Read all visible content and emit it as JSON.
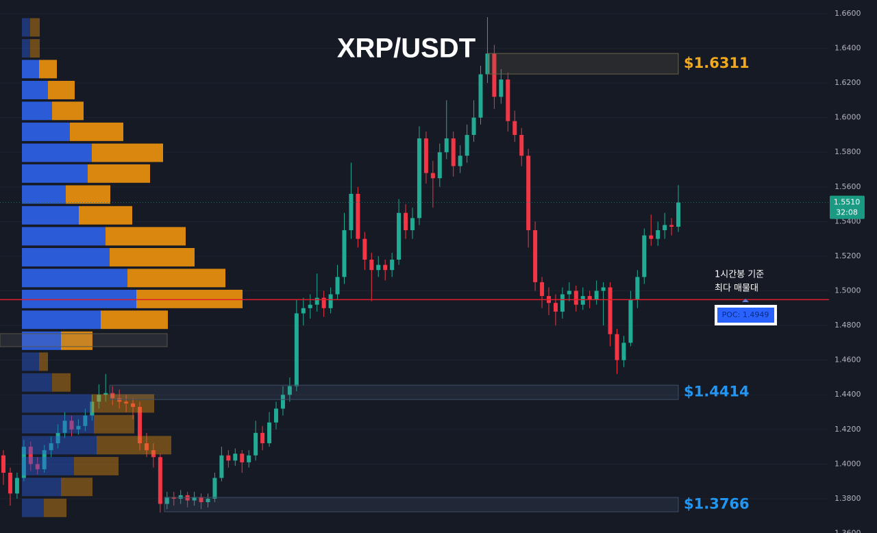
{
  "chart_data": {
    "type": "candlestick",
    "title": "XRP/USDT",
    "ylim": [
      1.3602,
      1.6679
    ],
    "yticks": [
      {
        "value": 1.36,
        "label": "1.3600"
      },
      {
        "value": 1.38,
        "label": "1.3800"
      },
      {
        "value": 1.4,
        "label": "1.4000"
      },
      {
        "value": 1.42,
        "label": "1.4200"
      },
      {
        "value": 1.44,
        "label": "1.4400"
      },
      {
        "value": 1.46,
        "label": "1.4600"
      },
      {
        "value": 1.48,
        "label": "1.4800"
      },
      {
        "value": 1.5,
        "label": "1.5000"
      },
      {
        "value": 1.52,
        "label": "1.5200"
      },
      {
        "value": 1.54,
        "label": "1.5400"
      },
      {
        "value": 1.56,
        "label": "1.5600"
      },
      {
        "value": 1.58,
        "label": "1.5800"
      },
      {
        "value": 1.6,
        "label": "1.6000"
      },
      {
        "value": 1.62,
        "label": "1.6200"
      },
      {
        "value": 1.64,
        "label": "1.6400"
      },
      {
        "value": 1.66,
        "label": "1.6600"
      }
    ],
    "grid": true,
    "up_color": "#22ab94",
    "down_color": "#f23645",
    "ohlc": [
      [
        1.405,
        1.408,
        1.388,
        1.395
      ],
      [
        1.395,
        1.398,
        1.376,
        1.383
      ],
      [
        1.383,
        1.395,
        1.38,
        1.392
      ],
      [
        1.392,
        1.414,
        1.39,
        1.41
      ],
      [
        1.41,
        1.413,
        1.396,
        1.4
      ],
      [
        1.4,
        1.404,
        1.394,
        1.397
      ],
      [
        1.397,
        1.411,
        1.395,
        1.408
      ],
      [
        1.408,
        1.416,
        1.404,
        1.412
      ],
      [
        1.412,
        1.423,
        1.409,
        1.418
      ],
      [
        1.418,
        1.43,
        1.415,
        1.425
      ],
      [
        1.425,
        1.428,
        1.416,
        1.42
      ],
      [
        1.42,
        1.426,
        1.417,
        1.422
      ],
      [
        1.422,
        1.432,
        1.419,
        1.428
      ],
      [
        1.428,
        1.44,
        1.425,
        1.436
      ],
      [
        1.436,
        1.446,
        1.432,
        1.44
      ],
      [
        1.44,
        1.452,
        1.436,
        1.441
      ],
      [
        1.441,
        1.445,
        1.434,
        1.438
      ],
      [
        1.438,
        1.443,
        1.432,
        1.436
      ],
      [
        1.436,
        1.44,
        1.43,
        1.435
      ],
      [
        1.435,
        1.438,
        1.426,
        1.433
      ],
      [
        1.433,
        1.436,
        1.408,
        1.412
      ],
      [
        1.412,
        1.418,
        1.404,
        1.408
      ],
      [
        1.408,
        1.412,
        1.398,
        1.404
      ],
      [
        1.404,
        1.406,
        1.372,
        1.377
      ],
      [
        1.377,
        1.384,
        1.374,
        1.381
      ],
      [
        1.381,
        1.384,
        1.376,
        1.38
      ],
      [
        1.38,
        1.385,
        1.377,
        1.382
      ],
      [
        1.382,
        1.384,
        1.375,
        1.379
      ],
      [
        1.379,
        1.384,
        1.376,
        1.381
      ],
      [
        1.381,
        1.383,
        1.374,
        1.378
      ],
      [
        1.378,
        1.383,
        1.375,
        1.38
      ],
      [
        1.38,
        1.395,
        1.378,
        1.392
      ],
      [
        1.392,
        1.41,
        1.39,
        1.405
      ],
      [
        1.405,
        1.408,
        1.398,
        1.402
      ],
      [
        1.402,
        1.409,
        1.399,
        1.406
      ],
      [
        1.406,
        1.408,
        1.395,
        1.401
      ],
      [
        1.401,
        1.408,
        1.398,
        1.405
      ],
      [
        1.405,
        1.425,
        1.402,
        1.418
      ],
      [
        1.418,
        1.422,
        1.408,
        1.412
      ],
      [
        1.412,
        1.43,
        1.41,
        1.424
      ],
      [
        1.424,
        1.436,
        1.42,
        1.432
      ],
      [
        1.432,
        1.445,
        1.428,
        1.44
      ],
      [
        1.44,
        1.45,
        1.436,
        1.445
      ],
      [
        1.445,
        1.495,
        1.442,
        1.487
      ],
      [
        1.487,
        1.496,
        1.48,
        1.49
      ],
      [
        1.49,
        1.498,
        1.484,
        1.492
      ],
      [
        1.492,
        1.51,
        1.488,
        1.496
      ],
      [
        1.496,
        1.5,
        1.485,
        1.49
      ],
      [
        1.49,
        1.502,
        1.487,
        1.498
      ],
      [
        1.498,
        1.515,
        1.495,
        1.508
      ],
      [
        1.508,
        1.545,
        1.504,
        1.535
      ],
      [
        1.535,
        1.574,
        1.53,
        1.556
      ],
      [
        1.556,
        1.56,
        1.525,
        1.53
      ],
      [
        1.53,
        1.534,
        1.512,
        1.518
      ],
      [
        1.518,
        1.522,
        1.494,
        1.512
      ],
      [
        1.512,
        1.52,
        1.508,
        1.515
      ],
      [
        1.515,
        1.518,
        1.506,
        1.512
      ],
      [
        1.512,
        1.522,
        1.508,
        1.518
      ],
      [
        1.518,
        1.553,
        1.515,
        1.545
      ],
      [
        1.545,
        1.55,
        1.53,
        1.535
      ],
      [
        1.535,
        1.548,
        1.53,
        1.542
      ],
      [
        1.542,
        1.595,
        1.538,
        1.588
      ],
      [
        1.588,
        1.592,
        1.562,
        1.568
      ],
      [
        1.568,
        1.575,
        1.548,
        1.565
      ],
      [
        1.565,
        1.585,
        1.56,
        1.58
      ],
      [
        1.58,
        1.61,
        1.576,
        1.588
      ],
      [
        1.588,
        1.592,
        1.566,
        1.572
      ],
      [
        1.572,
        1.584,
        1.568,
        1.578
      ],
      [
        1.578,
        1.596,
        1.574,
        1.59
      ],
      [
        1.59,
        1.61,
        1.586,
        1.6
      ],
      [
        1.6,
        1.63,
        1.596,
        1.625
      ],
      [
        1.625,
        1.658,
        1.62,
        1.637
      ],
      [
        1.637,
        1.642,
        1.605,
        1.612
      ],
      [
        1.612,
        1.628,
        1.608,
        1.622
      ],
      [
        1.622,
        1.626,
        1.592,
        1.598
      ],
      [
        1.598,
        1.604,
        1.586,
        1.59
      ],
      [
        1.59,
        1.594,
        1.572,
        1.578
      ],
      [
        1.578,
        1.582,
        1.525,
        1.535
      ],
      [
        1.535,
        1.54,
        1.5,
        1.505
      ],
      [
        1.505,
        1.508,
        1.49,
        1.497
      ],
      [
        1.497,
        1.502,
        1.486,
        1.493
      ],
      [
        1.493,
        1.498,
        1.48,
        1.488
      ],
      [
        1.488,
        1.502,
        1.484,
        1.498
      ],
      [
        1.498,
        1.505,
        1.494,
        1.5
      ],
      [
        1.5,
        1.503,
        1.488,
        1.492
      ],
      [
        1.492,
        1.502,
        1.489,
        1.497
      ],
      [
        1.497,
        1.5,
        1.49,
        1.495
      ],
      [
        1.495,
        1.506,
        1.492,
        1.5
      ],
      [
        1.5,
        1.505,
        1.48,
        1.502
      ],
      [
        1.502,
        1.505,
        1.468,
        1.475
      ],
      [
        1.475,
        1.478,
        1.452,
        1.46
      ],
      [
        1.46,
        1.474,
        1.456,
        1.47
      ],
      [
        1.47,
        1.5,
        1.468,
        1.495
      ],
      [
        1.495,
        1.512,
        1.49,
        1.508
      ],
      [
        1.508,
        1.536,
        1.504,
        1.532
      ],
      [
        1.532,
        1.544,
        1.526,
        1.53
      ],
      [
        1.53,
        1.54,
        1.526,
        1.535
      ],
      [
        1.535,
        1.545,
        1.53,
        1.538
      ],
      [
        1.538,
        1.542,
        1.532,
        1.537
      ],
      [
        1.537,
        1.561,
        1.534,
        1.551
      ]
    ],
    "profile": {
      "levels": [
        1.6521,
        1.64,
        1.628,
        1.6159,
        1.6039,
        1.5918,
        1.5797,
        1.5677,
        1.5556,
        1.5436,
        1.5315,
        1.5194,
        1.5074,
        1.4953,
        1.4833,
        1.4712,
        1.4591,
        1.4471,
        1.435,
        1.423,
        1.4109,
        1.3988,
        1.3868,
        1.3747
      ],
      "buy": [
        12,
        12,
        25,
        38,
        44,
        70,
        102,
        96,
        64,
        83,
        122,
        128,
        154,
        167,
        115,
        57,
        25,
        44,
        102,
        105,
        109,
        76,
        57,
        32
      ],
      "sell": [
        14,
        14,
        26,
        39,
        46,
        78,
        104,
        91,
        65,
        78,
        117,
        124,
        143,
        155,
        98,
        46,
        13,
        27,
        91,
        59,
        109,
        65,
        46,
        33
      ],
      "buy_color": "#2b5bd7",
      "sell_color": "#d9870f",
      "value_area": [
        1.465,
        1.634
      ]
    },
    "zones": [
      {
        "value": 1.6311,
        "label": "$1.6311",
        "color": "#f2a91d"
      },
      {
        "value": 1.4414,
        "label": "$1.4414",
        "color": "#2196f3"
      },
      {
        "value": 1.3766,
        "label": "$1.3766",
        "color": "#2196f3"
      }
    ],
    "poc": {
      "value": 1.4949,
      "label": "POC: 1.4949",
      "color": "#e01e2b"
    },
    "annotation": [
      "1시간봉 기준",
      "최다 매물대"
    ],
    "last_price": {
      "value": 1.551,
      "label": "1.5510"
    },
    "countdown": "32:08"
  }
}
